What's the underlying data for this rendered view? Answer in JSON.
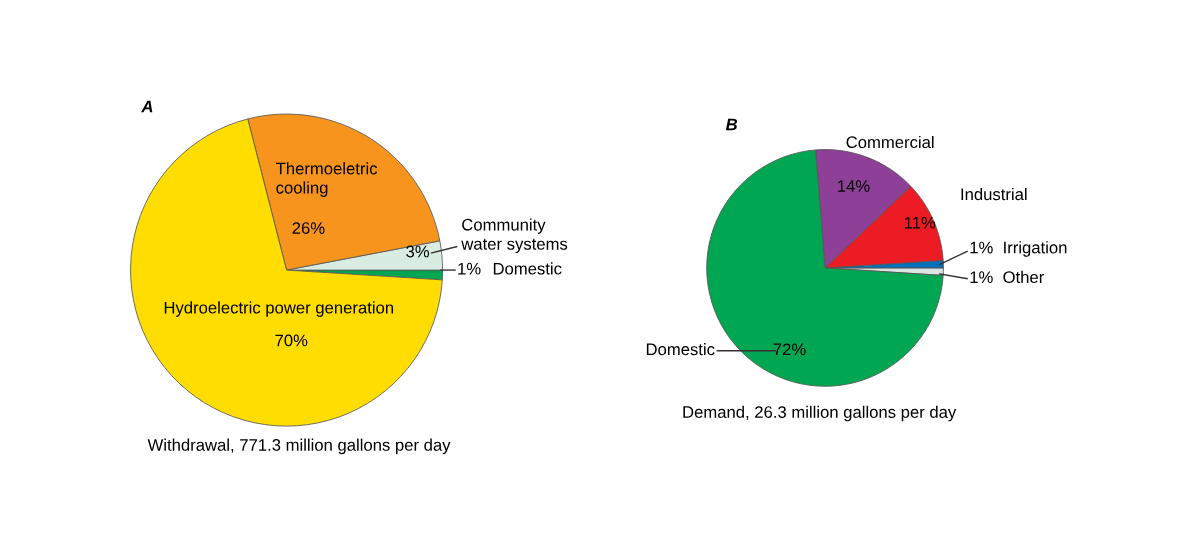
{
  "chart_data": [
    {
      "type": "pie",
      "title": "A",
      "categories": [
        "Domestic",
        "Community\nwater systems",
        "Thermoeletric\ncooling",
        "Hydroelectric power generation"
      ],
      "values": [
        1,
        3,
        26,
        70
      ],
      "colors": [
        "#00a651",
        "#d9ece2",
        "#f7941d",
        "#ffdd00"
      ],
      "value_labels": [
        "1%",
        "3%",
        "26%",
        "70%"
      ],
      "legend": false,
      "annotations": [
        "Withdrawal, 771.3 million gallons per day"
      ]
    },
    {
      "type": "pie",
      "title": "B",
      "categories": [
        "Other",
        "Irrigation",
        "Industrial",
        "Commercial",
        "Domestic"
      ],
      "values": [
        1,
        1,
        11,
        14,
        72
      ],
      "colors": [
        "#dde4e4",
        "#0072bc",
        "#ed1c24",
        "#8e3f98",
        "#00a651"
      ],
      "value_labels": [
        "1%",
        "1%",
        "11%",
        "14%",
        "72%"
      ],
      "legend": false,
      "annotations": [
        "Demand, 26.3 million gallons per day"
      ]
    }
  ]
}
